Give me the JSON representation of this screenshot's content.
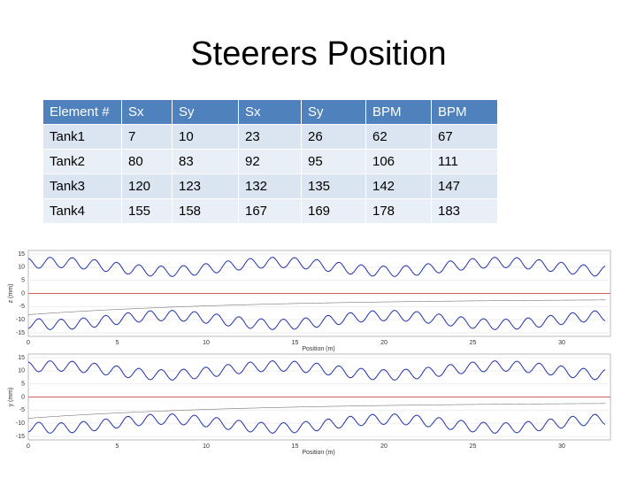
{
  "title": "Steerers Position",
  "table": {
    "header": [
      "Element #",
      "Sx",
      "Sy",
      "Sx",
      "Sy",
      "BPM",
      "BPM"
    ],
    "rows": [
      [
        "Tank1",
        "7",
        "10",
        "23",
        "26",
        "62",
        "67"
      ],
      [
        "Tank2",
        "80",
        "83",
        "92",
        "95",
        "106",
        "111"
      ],
      [
        "Tank3",
        "120",
        "123",
        "132",
        "135",
        "142",
        "147"
      ],
      [
        "Tank4",
        "155",
        "158",
        "167",
        "169",
        "178",
        "183"
      ]
    ]
  },
  "plots": [
    {
      "y_label": "z (mm)",
      "x_label": "Position (m)",
      "yticks": [
        15,
        10,
        5,
        0,
        -5,
        -10,
        -15
      ],
      "xticks": [
        0,
        5,
        10,
        15,
        20,
        25,
        30
      ]
    },
    {
      "y_label": "y (mm)",
      "x_label": "Position (m)",
      "yticks": [
        15,
        10,
        5,
        0,
        -5,
        -10,
        -15
      ],
      "xticks": [
        0,
        5,
        10,
        15,
        20,
        25,
        30
      ]
    }
  ]
}
